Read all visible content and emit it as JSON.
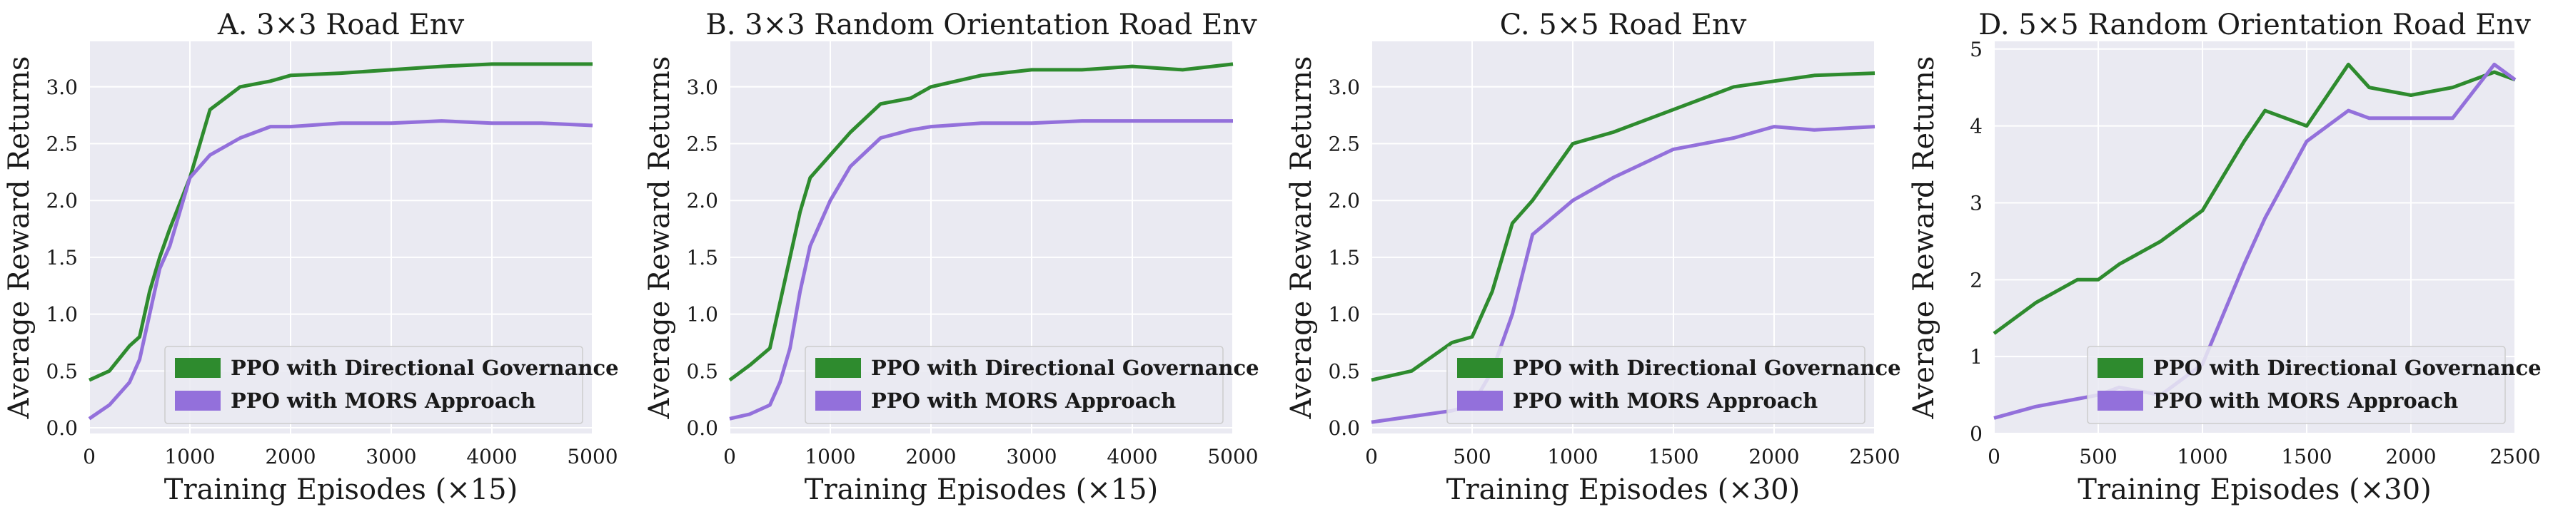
{
  "chart_data": [
    {
      "type": "line",
      "title": "A. 3×3 Road Env",
      "xlabel": "Training Episodes (×15)",
      "ylabel": "Average Reward Returns",
      "xlim": [
        0,
        5000
      ],
      "ylim": [
        -0.05,
        3.4
      ],
      "xticks": [
        0,
        1000,
        2000,
        3000,
        4000,
        5000
      ],
      "yticks": [
        0.0,
        0.5,
        1.0,
        1.5,
        2.0,
        2.5,
        3.0
      ],
      "ytick_labels": [
        "0.0",
        "0.5",
        "1.0",
        "1.5",
        "2.0",
        "2.5",
        "3.0"
      ],
      "grid": true,
      "legend_position": "lower-right",
      "series": [
        {
          "name": "PPO with Directional Governance",
          "color": "#2e8b2e",
          "points": [
            [
              0,
              0.42
            ],
            [
              200,
              0.5
            ],
            [
              400,
              0.72
            ],
            [
              500,
              0.8
            ],
            [
              600,
              1.2
            ],
            [
              700,
              1.5
            ],
            [
              800,
              1.75
            ],
            [
              1000,
              2.2
            ],
            [
              1200,
              2.8
            ],
            [
              1500,
              3.0
            ],
            [
              1800,
              3.05
            ],
            [
              2000,
              3.1
            ],
            [
              2500,
              3.12
            ],
            [
              3000,
              3.15
            ],
            [
              3500,
              3.18
            ],
            [
              4000,
              3.2
            ],
            [
              4500,
              3.2
            ],
            [
              5000,
              3.2
            ]
          ]
        },
        {
          "name": "PPO with MORS Approach",
          "color": "#9370db",
          "points": [
            [
              0,
              0.08
            ],
            [
              200,
              0.2
            ],
            [
              400,
              0.4
            ],
            [
              500,
              0.6
            ],
            [
              600,
              1.0
            ],
            [
              700,
              1.4
            ],
            [
              800,
              1.6
            ],
            [
              1000,
              2.2
            ],
            [
              1200,
              2.4
            ],
            [
              1500,
              2.55
            ],
            [
              1800,
              2.65
            ],
            [
              2000,
              2.65
            ],
            [
              2500,
              2.68
            ],
            [
              3000,
              2.68
            ],
            [
              3500,
              2.7
            ],
            [
              4000,
              2.68
            ],
            [
              4500,
              2.68
            ],
            [
              5000,
              2.66
            ]
          ]
        }
      ]
    },
    {
      "type": "line",
      "title": "B. 3×3 Random Orientation Road Env",
      "xlabel": "Training Episodes (×15)",
      "ylabel": "Average Reward Returns",
      "xlim": [
        0,
        5000
      ],
      "ylim": [
        -0.05,
        3.4
      ],
      "xticks": [
        0,
        1000,
        2000,
        3000,
        4000,
        5000
      ],
      "yticks": [
        0.0,
        0.5,
        1.0,
        1.5,
        2.0,
        2.5,
        3.0
      ],
      "ytick_labels": [
        "0.0",
        "0.5",
        "1.0",
        "1.5",
        "2.0",
        "2.5",
        "3.0"
      ],
      "grid": true,
      "legend_position": "lower-right",
      "series": [
        {
          "name": "PPO with Directional Governance",
          "color": "#2e8b2e",
          "points": [
            [
              0,
              0.42
            ],
            [
              200,
              0.55
            ],
            [
              400,
              0.7
            ],
            [
              500,
              1.1
            ],
            [
              600,
              1.5
            ],
            [
              700,
              1.9
            ],
            [
              800,
              2.2
            ],
            [
              1000,
              2.4
            ],
            [
              1200,
              2.6
            ],
            [
              1500,
              2.85
            ],
            [
              1800,
              2.9
            ],
            [
              2000,
              3.0
            ],
            [
              2500,
              3.1
            ],
            [
              3000,
              3.15
            ],
            [
              3500,
              3.15
            ],
            [
              4000,
              3.18
            ],
            [
              4500,
              3.15
            ],
            [
              5000,
              3.2
            ]
          ]
        },
        {
          "name": "PPO with MORS Approach",
          "color": "#9370db",
          "points": [
            [
              0,
              0.08
            ],
            [
              200,
              0.12
            ],
            [
              400,
              0.2
            ],
            [
              500,
              0.4
            ],
            [
              600,
              0.7
            ],
            [
              700,
              1.2
            ],
            [
              800,
              1.6
            ],
            [
              1000,
              2.0
            ],
            [
              1200,
              2.3
            ],
            [
              1500,
              2.55
            ],
            [
              1800,
              2.62
            ],
            [
              2000,
              2.65
            ],
            [
              2500,
              2.68
            ],
            [
              3000,
              2.68
            ],
            [
              3500,
              2.7
            ],
            [
              4000,
              2.7
            ],
            [
              4500,
              2.7
            ],
            [
              5000,
              2.7
            ]
          ]
        }
      ]
    },
    {
      "type": "line",
      "title": "C. 5×5 Road Env",
      "xlabel": "Training Episodes (×30)",
      "ylabel": "Average Reward Returns",
      "xlim": [
        0,
        2500
      ],
      "ylim": [
        -0.05,
        3.4
      ],
      "xticks": [
        0,
        500,
        1000,
        1500,
        2000,
        2500
      ],
      "yticks": [
        0.0,
        0.5,
        1.0,
        1.5,
        2.0,
        2.5,
        3.0
      ],
      "ytick_labels": [
        "0.0",
        "0.5",
        "1.0",
        "1.5",
        "2.0",
        "2.5",
        "3.0"
      ],
      "grid": true,
      "legend_position": "lower-right",
      "series": [
        {
          "name": "PPO with Directional Governance",
          "color": "#2e8b2e",
          "points": [
            [
              0,
              0.42
            ],
            [
              200,
              0.5
            ],
            [
              400,
              0.75
            ],
            [
              500,
              0.8
            ],
            [
              600,
              1.2
            ],
            [
              700,
              1.8
            ],
            [
              800,
              2.0
            ],
            [
              1000,
              2.5
            ],
            [
              1200,
              2.6
            ],
            [
              1500,
              2.8
            ],
            [
              1800,
              3.0
            ],
            [
              2000,
              3.05
            ],
            [
              2200,
              3.1
            ],
            [
              2500,
              3.12
            ]
          ]
        },
        {
          "name": "PPO with MORS Approach",
          "color": "#9370db",
          "points": [
            [
              0,
              0.05
            ],
            [
              200,
              0.1
            ],
            [
              400,
              0.15
            ],
            [
              500,
              0.2
            ],
            [
              600,
              0.5
            ],
            [
              700,
              1.0
            ],
            [
              800,
              1.7
            ],
            [
              1000,
              2.0
            ],
            [
              1200,
              2.2
            ],
            [
              1500,
              2.45
            ],
            [
              1800,
              2.55
            ],
            [
              2000,
              2.65
            ],
            [
              2200,
              2.62
            ],
            [
              2500,
              2.65
            ]
          ]
        }
      ]
    },
    {
      "type": "line",
      "title": "D. 5×5 Random Orientation Road Env",
      "xlabel": "Training Episodes (×30)",
      "ylabel": "Average Reward Returns",
      "xlim": [
        0,
        2500
      ],
      "ylim": [
        0.0,
        5.1
      ],
      "xticks": [
        0,
        500,
        1000,
        1500,
        2000,
        2500
      ],
      "yticks": [
        0,
        1,
        2,
        3,
        4,
        5
      ],
      "ytick_labels": [
        "0",
        "1",
        "2",
        "3",
        "4",
        "5"
      ],
      "grid": true,
      "legend_position": "lower-right",
      "series": [
        {
          "name": "PPO with Directional Governance",
          "color": "#2e8b2e",
          "points": [
            [
              0,
              1.3
            ],
            [
              200,
              1.7
            ],
            [
              400,
              2.0
            ],
            [
              500,
              2.0
            ],
            [
              600,
              2.2
            ],
            [
              800,
              2.5
            ],
            [
              1000,
              2.9
            ],
            [
              1200,
              3.8
            ],
            [
              1300,
              4.2
            ],
            [
              1500,
              4.0
            ],
            [
              1700,
              4.8
            ],
            [
              1800,
              4.5
            ],
            [
              2000,
              4.4
            ],
            [
              2200,
              4.5
            ],
            [
              2400,
              4.7
            ],
            [
              2500,
              4.6
            ]
          ]
        },
        {
          "name": "PPO with MORS Approach",
          "color": "#9370db",
          "points": [
            [
              0,
              0.2
            ],
            [
              200,
              0.35
            ],
            [
              400,
              0.45
            ],
            [
              500,
              0.5
            ],
            [
              600,
              0.6
            ],
            [
              800,
              0.5
            ],
            [
              1000,
              0.9
            ],
            [
              1200,
              2.2
            ],
            [
              1300,
              2.8
            ],
            [
              1500,
              3.8
            ],
            [
              1700,
              4.2
            ],
            [
              1800,
              4.1
            ],
            [
              2000,
              4.1
            ],
            [
              2200,
              4.1
            ],
            [
              2400,
              4.8
            ],
            [
              2500,
              4.6
            ]
          ]
        }
      ]
    }
  ]
}
